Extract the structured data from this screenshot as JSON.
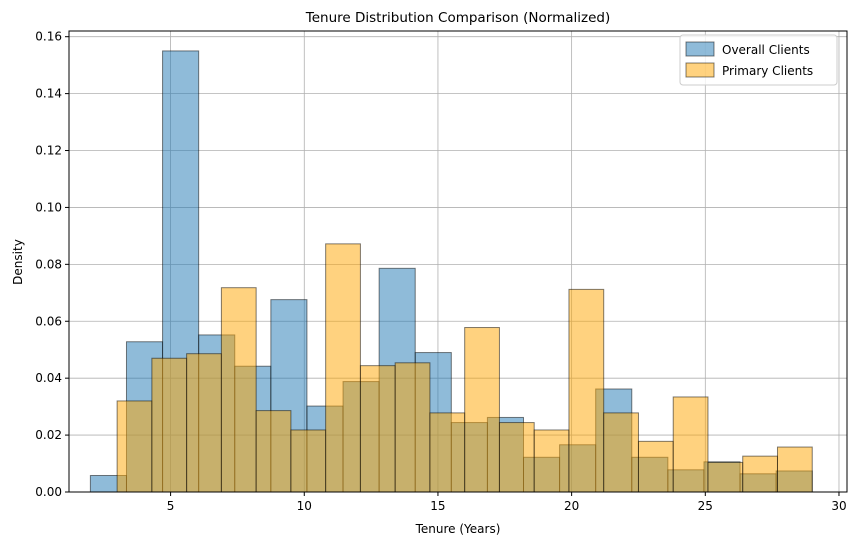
{
  "chart_data": {
    "type": "bar",
    "subtype": "histogram",
    "title": "Tenure Distribution Comparison (Normalized)",
    "xlabel": "Tenure (Years)",
    "ylabel": "Density",
    "xlim": [
      1.2,
      30.3
    ],
    "ylim": [
      0,
      0.162
    ],
    "xticks": [
      5,
      10,
      15,
      20,
      25,
      30
    ],
    "yticks": [
      0.0,
      0.02,
      0.04,
      0.06,
      0.08,
      0.1,
      0.12,
      0.14,
      0.16
    ],
    "ytick_format": 2,
    "grid": true,
    "legend_position": "top-right",
    "series": [
      {
        "name": "Overall Clients",
        "color": "#1f77b4",
        "bins": [
          {
            "x0": 2.0,
            "x1": 3.35,
            "y": 0.0058
          },
          {
            "x0": 3.35,
            "x1": 4.7,
            "y": 0.0528
          },
          {
            "x0": 4.7,
            "x1": 6.05,
            "y": 0.155
          },
          {
            "x0": 6.05,
            "x1": 7.4,
            "y": 0.0552
          },
          {
            "x0": 7.4,
            "x1": 8.75,
            "y": 0.0442
          },
          {
            "x0": 8.75,
            "x1": 10.1,
            "y": 0.0676
          },
          {
            "x0": 10.1,
            "x1": 11.45,
            "y": 0.0302
          },
          {
            "x0": 11.45,
            "x1": 12.8,
            "y": 0.0388
          },
          {
            "x0": 12.8,
            "x1": 14.15,
            "y": 0.0786
          },
          {
            "x0": 14.15,
            "x1": 15.5,
            "y": 0.049
          },
          {
            "x0": 15.5,
            "x1": 16.85,
            "y": 0.0244
          },
          {
            "x0": 16.85,
            "x1": 18.2,
            "y": 0.0262
          },
          {
            "x0": 18.2,
            "x1": 19.55,
            "y": 0.0122
          },
          {
            "x0": 19.55,
            "x1": 20.9,
            "y": 0.0166
          },
          {
            "x0": 20.9,
            "x1": 22.25,
            "y": 0.0362
          },
          {
            "x0": 22.25,
            "x1": 23.6,
            "y": 0.0122
          },
          {
            "x0": 23.6,
            "x1": 24.95,
            "y": 0.0078
          },
          {
            "x0": 24.95,
            "x1": 26.3,
            "y": 0.0106
          },
          {
            "x0": 26.3,
            "x1": 27.65,
            "y": 0.0064
          },
          {
            "x0": 27.65,
            "x1": 29.0,
            "y": 0.0074
          }
        ]
      },
      {
        "name": "Primary Clients",
        "color": "#ffa500",
        "bins": [
          {
            "x0": 3.0,
            "x1": 4.3,
            "y": 0.032
          },
          {
            "x0": 4.3,
            "x1": 5.6,
            "y": 0.047
          },
          {
            "x0": 5.6,
            "x1": 6.9,
            "y": 0.0486
          },
          {
            "x0": 6.9,
            "x1": 8.2,
            "y": 0.0718
          },
          {
            "x0": 8.2,
            "x1": 9.5,
            "y": 0.0286
          },
          {
            "x0": 9.5,
            "x1": 10.8,
            "y": 0.0218
          },
          {
            "x0": 10.8,
            "x1": 12.1,
            "y": 0.0872
          },
          {
            "x0": 12.1,
            "x1": 13.4,
            "y": 0.0444
          },
          {
            "x0": 13.4,
            "x1": 14.7,
            "y": 0.0454
          },
          {
            "x0": 14.7,
            "x1": 16.0,
            "y": 0.0278
          },
          {
            "x0": 16.0,
            "x1": 17.3,
            "y": 0.0578
          },
          {
            "x0": 17.3,
            "x1": 18.6,
            "y": 0.0244
          },
          {
            "x0": 18.6,
            "x1": 19.9,
            "y": 0.0218
          },
          {
            "x0": 19.9,
            "x1": 21.2,
            "y": 0.0712
          },
          {
            "x0": 21.2,
            "x1": 22.5,
            "y": 0.0278
          },
          {
            "x0": 22.5,
            "x1": 23.8,
            "y": 0.0178
          },
          {
            "x0": 23.8,
            "x1": 25.1,
            "y": 0.0334
          },
          {
            "x0": 25.1,
            "x1": 26.4,
            "y": 0.0104
          },
          {
            "x0": 26.4,
            "x1": 27.7,
            "y": 0.0126
          },
          {
            "x0": 27.7,
            "x1": 29.0,
            "y": 0.0158
          }
        ]
      }
    ]
  }
}
